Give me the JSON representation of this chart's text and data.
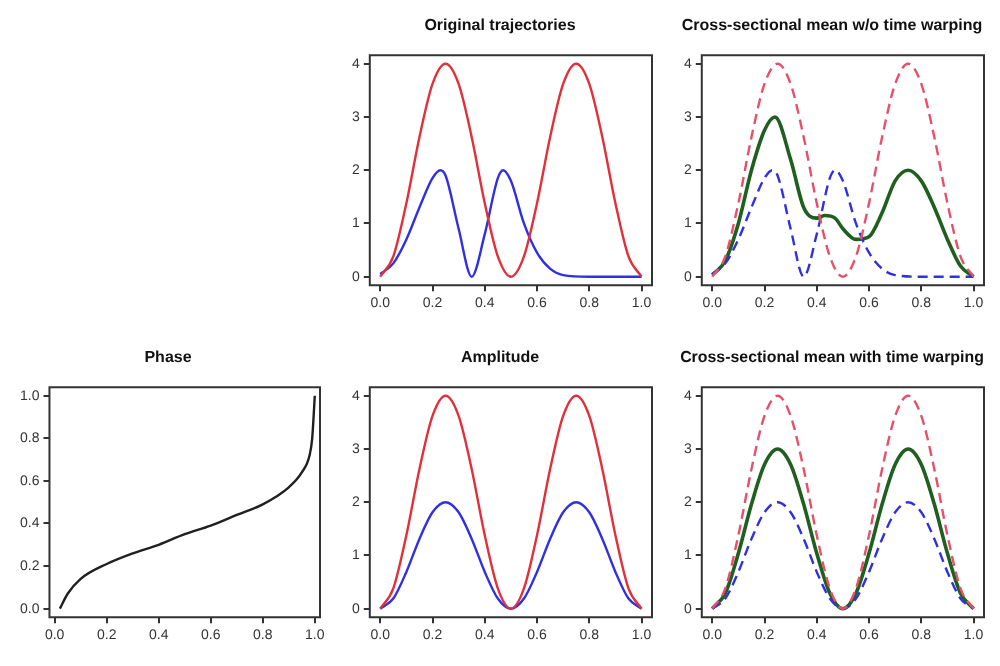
{
  "chart_data": [
    {
      "type": "line",
      "title": "Original trajectories",
      "xlim": [
        -0.04,
        1.04
      ],
      "ylim": [
        -0.16,
        4.16
      ],
      "xticks": [
        {
          "value": 0,
          "label": "0.0"
        },
        {
          "value": 0.2,
          "label": "0.2"
        },
        {
          "value": 0.4,
          "label": "0.4"
        },
        {
          "value": 0.6,
          "label": "0.6"
        },
        {
          "value": 0.8,
          "label": "0.8"
        },
        {
          "value": 1,
          "label": "1.0"
        }
      ],
      "yticks": [
        0,
        1,
        2,
        3,
        4
      ],
      "grid": false,
      "legend": false,
      "marker": "none",
      "series": [
        {
          "color": "#e0303a",
          "line_style": "solid",
          "x": [
            0,
            0.05,
            0.1,
            0.15,
            0.2,
            0.25,
            0.3,
            0.35,
            0.4,
            0.45,
            0.5,
            0.55,
            0.6,
            0.65,
            0.7,
            0.75,
            0.8,
            0.85,
            0.9,
            0.95,
            1
          ],
          "values": [
            0,
            0.38,
            1.38,
            2.62,
            3.62,
            4,
            3.62,
            2.62,
            1.38,
            0.38,
            0,
            0.38,
            1.38,
            2.62,
            3.62,
            4,
            3.62,
            2.62,
            1.38,
            0.38,
            0
          ]
        },
        {
          "color": "#3030e0",
          "line_style": "solid",
          "x": [
            0,
            0.05,
            0.1,
            0.15,
            0.2,
            0.23,
            0.25,
            0.3,
            0.35,
            0.4,
            0.45,
            0.47,
            0.5,
            0.55,
            0.6,
            0.65,
            0.7,
            0.8,
            0.9,
            1
          ],
          "values": [
            0.05,
            0.25,
            0.7,
            1.3,
            1.85,
            2,
            1.9,
            0.9,
            0,
            0.8,
            1.85,
            2,
            1.8,
            1,
            0.45,
            0.15,
            0.03,
            0,
            0,
            0
          ]
        }
      ]
    },
    {
      "type": "line",
      "title": "Cross-sectional mean w/o time warping",
      "xlim": [
        -0.04,
        1.04
      ],
      "ylim": [
        -0.16,
        4.16
      ],
      "xticks": [
        {
          "value": 0,
          "label": "0.0"
        },
        {
          "value": 0.2,
          "label": "0.2"
        },
        {
          "value": 0.4,
          "label": "0.4"
        },
        {
          "value": 0.6,
          "label": "0.6"
        },
        {
          "value": 0.8,
          "label": "0.8"
        },
        {
          "value": 1,
          "label": "1.0"
        }
      ],
      "yticks": [
        0,
        1,
        2,
        3,
        4
      ],
      "grid": false,
      "legend": false,
      "marker": "none",
      "series": [
        {
          "color": "#e8506a",
          "line_style": "dashed",
          "x": [
            0,
            0.05,
            0.1,
            0.15,
            0.2,
            0.25,
            0.3,
            0.35,
            0.4,
            0.45,
            0.5,
            0.55,
            0.6,
            0.65,
            0.7,
            0.75,
            0.8,
            0.85,
            0.9,
            0.95,
            1
          ],
          "values": [
            0,
            0.38,
            1.38,
            2.62,
            3.62,
            4,
            3.62,
            2.62,
            1.38,
            0.38,
            0,
            0.38,
            1.38,
            2.62,
            3.62,
            4,
            3.62,
            2.62,
            1.38,
            0.38,
            0
          ]
        },
        {
          "color": "#3030e0",
          "line_style": "dashed",
          "x": [
            0,
            0.05,
            0.1,
            0.15,
            0.2,
            0.23,
            0.25,
            0.3,
            0.35,
            0.4,
            0.45,
            0.47,
            0.5,
            0.55,
            0.6,
            0.65,
            0.7,
            0.8,
            0.9,
            1
          ],
          "values": [
            0.05,
            0.25,
            0.7,
            1.3,
            1.85,
            2,
            1.9,
            0.9,
            0,
            0.8,
            1.85,
            2,
            1.8,
            1,
            0.45,
            0.15,
            0.03,
            0,
            0,
            0
          ]
        },
        {
          "color": "#1f5f1f",
          "line_style": "solid",
          "x": [
            0,
            0.05,
            0.1,
            0.15,
            0.2,
            0.24,
            0.3,
            0.35,
            0.4,
            0.43,
            0.47,
            0.5,
            0.55,
            0.6,
            0.65,
            0.7,
            0.75,
            0.8,
            0.85,
            0.9,
            0.95,
            1
          ],
          "values": [
            0.03,
            0.3,
            1,
            2,
            2.75,
            3,
            2.2,
            1.3,
            1.1,
            1.15,
            1.1,
            0.9,
            0.7,
            0.75,
            1.2,
            1.8,
            2,
            1.8,
            1.3,
            0.7,
            0.2,
            0
          ]
        }
      ]
    },
    {
      "type": "line",
      "title": "Phase",
      "xlim": [
        -0.02,
        1.02
      ],
      "ylim": [
        -0.04,
        1.04
      ],
      "xticks": [
        {
          "value": 0,
          "label": "0.0"
        },
        {
          "value": 0.2,
          "label": "0.2"
        },
        {
          "value": 0.4,
          "label": "0.4"
        },
        {
          "value": 0.6,
          "label": "0.6"
        },
        {
          "value": 0.8,
          "label": "0.8"
        },
        {
          "value": 1,
          "label": "1.0"
        }
      ],
      "yticks": [
        {
          "value": 0,
          "label": "0.0"
        },
        {
          "value": 0.2,
          "label": "0.2"
        },
        {
          "value": 0.4,
          "label": "0.4"
        },
        {
          "value": 0.6,
          "label": "0.6"
        },
        {
          "value": 0.8,
          "label": "0.8"
        },
        {
          "value": 1,
          "label": "1.0"
        }
      ],
      "grid": false,
      "legend": false,
      "marker": "none",
      "series": [
        {
          "color": "#202020",
          "line_style": "solid",
          "x": [
            0.02,
            0.05,
            0.1,
            0.2,
            0.3,
            0.4,
            0.5,
            0.6,
            0.7,
            0.8,
            0.9,
            0.95,
            0.98,
            0.99,
            1
          ],
          "values": [
            0,
            0.07,
            0.14,
            0.21,
            0.26,
            0.3,
            0.35,
            0.39,
            0.44,
            0.49,
            0.57,
            0.64,
            0.72,
            0.8,
            1
          ]
        }
      ]
    },
    {
      "type": "line",
      "title": "Amplitude",
      "xlim": [
        -0.04,
        1.04
      ],
      "ylim": [
        -0.16,
        4.16
      ],
      "xticks": [
        {
          "value": 0,
          "label": "0.0"
        },
        {
          "value": 0.2,
          "label": "0.2"
        },
        {
          "value": 0.4,
          "label": "0.4"
        },
        {
          "value": 0.6,
          "label": "0.6"
        },
        {
          "value": 0.8,
          "label": "0.8"
        },
        {
          "value": 1,
          "label": "1.0"
        }
      ],
      "yticks": [
        0,
        1,
        2,
        3,
        4
      ],
      "grid": false,
      "legend": false,
      "marker": "none",
      "series": [
        {
          "color": "#e0303a",
          "line_style": "solid",
          "x": [
            0,
            0.05,
            0.1,
            0.15,
            0.2,
            0.25,
            0.3,
            0.35,
            0.4,
            0.45,
            0.5,
            0.55,
            0.6,
            0.65,
            0.7,
            0.75,
            0.8,
            0.85,
            0.9,
            0.95,
            1
          ],
          "values": [
            0,
            0.38,
            1.38,
            2.62,
            3.62,
            4,
            3.62,
            2.62,
            1.38,
            0.38,
            0,
            0.38,
            1.38,
            2.62,
            3.62,
            4,
            3.62,
            2.62,
            1.38,
            0.38,
            0
          ]
        },
        {
          "color": "#3030e0",
          "line_style": "solid",
          "x": [
            0,
            0.05,
            0.1,
            0.15,
            0.2,
            0.25,
            0.3,
            0.35,
            0.4,
            0.45,
            0.5,
            0.55,
            0.6,
            0.65,
            0.7,
            0.75,
            0.8,
            0.85,
            0.9,
            0.95,
            1
          ],
          "values": [
            0,
            0.19,
            0.69,
            1.31,
            1.81,
            2,
            1.81,
            1.31,
            0.69,
            0.19,
            0,
            0.19,
            0.69,
            1.31,
            1.81,
            2,
            1.81,
            1.31,
            0.69,
            0.19,
            0
          ]
        }
      ]
    },
    {
      "type": "line",
      "title": "Cross-sectional mean with time warping",
      "xlim": [
        -0.04,
        1.04
      ],
      "ylim": [
        -0.16,
        4.16
      ],
      "xticks": [
        {
          "value": 0,
          "label": "0.0"
        },
        {
          "value": 0.2,
          "label": "0.2"
        },
        {
          "value": 0.4,
          "label": "0.4"
        },
        {
          "value": 0.6,
          "label": "0.6"
        },
        {
          "value": 0.8,
          "label": "0.8"
        },
        {
          "value": 1,
          "label": "1.0"
        }
      ],
      "yticks": [
        0,
        1,
        2,
        3,
        4
      ],
      "grid": false,
      "legend": false,
      "marker": "none",
      "series": [
        {
          "color": "#e8506a",
          "line_style": "dashed",
          "x": [
            0,
            0.05,
            0.1,
            0.15,
            0.2,
            0.25,
            0.3,
            0.35,
            0.4,
            0.45,
            0.5,
            0.55,
            0.6,
            0.65,
            0.7,
            0.75,
            0.8,
            0.85,
            0.9,
            0.95,
            1
          ],
          "values": [
            0,
            0.38,
            1.38,
            2.62,
            3.62,
            4,
            3.62,
            2.62,
            1.38,
            0.38,
            0,
            0.38,
            1.38,
            2.62,
            3.62,
            4,
            3.62,
            2.62,
            1.38,
            0.38,
            0
          ]
        },
        {
          "color": "#3030e0",
          "line_style": "dashed",
          "x": [
            0,
            0.05,
            0.1,
            0.15,
            0.2,
            0.25,
            0.3,
            0.35,
            0.4,
            0.45,
            0.5,
            0.55,
            0.6,
            0.65,
            0.7,
            0.75,
            0.8,
            0.85,
            0.9,
            0.95,
            1
          ],
          "values": [
            0,
            0.19,
            0.69,
            1.31,
            1.81,
            2,
            1.81,
            1.31,
            0.69,
            0.19,
            0,
            0.19,
            0.69,
            1.31,
            1.81,
            2,
            1.81,
            1.31,
            0.69,
            0.19,
            0
          ]
        },
        {
          "color": "#1f5f1f",
          "line_style": "solid",
          "x": [
            0,
            0.05,
            0.1,
            0.15,
            0.2,
            0.25,
            0.3,
            0.35,
            0.4,
            0.45,
            0.5,
            0.55,
            0.6,
            0.65,
            0.7,
            0.75,
            0.8,
            0.85,
            0.9,
            0.95,
            1
          ],
          "values": [
            0,
            0.29,
            1.04,
            1.96,
            2.71,
            3,
            2.71,
            1.96,
            1.04,
            0.29,
            0,
            0.29,
            1.04,
            1.96,
            2.71,
            3,
            2.71,
            1.96,
            1.04,
            0.29,
            0
          ]
        }
      ]
    }
  ]
}
